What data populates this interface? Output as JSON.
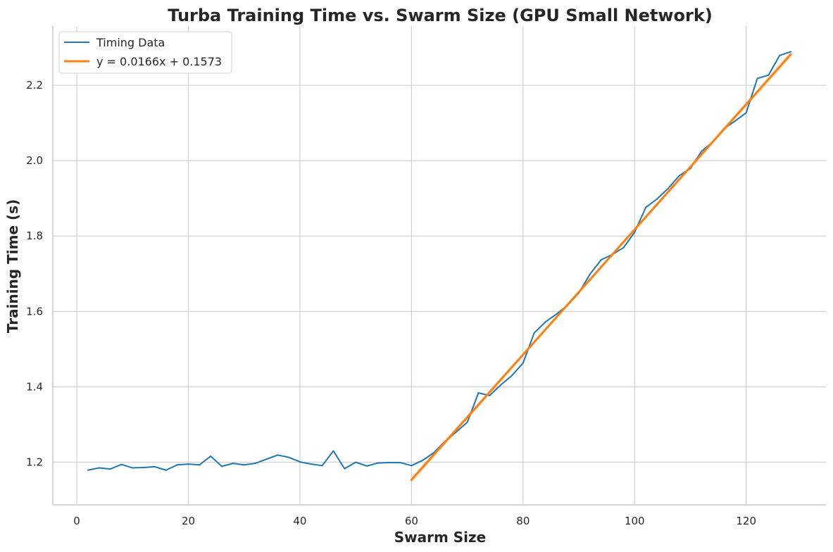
{
  "chart_data": {
    "type": "line",
    "title": "Turba Training Time vs. Swarm Size (GPU Small Network)",
    "xlabel": "Swarm Size",
    "ylabel": "Training Time (s)",
    "xlim": [
      -4.3,
      134.3
    ],
    "ylim": [
      1.087,
      2.357
    ],
    "xticks": [
      0,
      20,
      40,
      60,
      80,
      100,
      120
    ],
    "yticks": [
      1.2,
      1.4,
      1.6,
      1.8,
      2.0,
      2.2
    ],
    "xtick_labels": [
      "0",
      "20",
      "40",
      "60",
      "80",
      "100",
      "120"
    ],
    "ytick_labels": [
      "1.2",
      "1.4",
      "1.6",
      "1.8",
      "2.0",
      "2.2"
    ],
    "grid": true,
    "legend_position": "top-left",
    "series": [
      {
        "name": "Timing Data",
        "color": "#1f77b4",
        "x": [
          2,
          4,
          6,
          8,
          10,
          12,
          14,
          16,
          18,
          20,
          22,
          24,
          26,
          28,
          30,
          32,
          34,
          36,
          38,
          40,
          42,
          44,
          46,
          48,
          50,
          52,
          54,
          56,
          58,
          60,
          62,
          64,
          66,
          68,
          70,
          72,
          74,
          76,
          78,
          80,
          82,
          84,
          86,
          88,
          90,
          92,
          94,
          96,
          98,
          100,
          102,
          104,
          106,
          108,
          110,
          112,
          114,
          116,
          118,
          120,
          122,
          124,
          126,
          128
        ],
        "y": [
          1.179,
          1.185,
          1.182,
          1.194,
          1.185,
          1.186,
          1.188,
          1.179,
          1.193,
          1.195,
          1.193,
          1.216,
          1.189,
          1.197,
          1.193,
          1.197,
          1.208,
          1.219,
          1.213,
          1.201,
          1.195,
          1.191,
          1.23,
          1.183,
          1.2,
          1.19,
          1.198,
          1.199,
          1.199,
          1.191,
          1.205,
          1.225,
          1.255,
          1.28,
          1.306,
          1.384,
          1.377,
          1.405,
          1.43,
          1.463,
          1.543,
          1.572,
          1.593,
          1.617,
          1.649,
          1.699,
          1.737,
          1.751,
          1.769,
          1.81,
          1.876,
          1.898,
          1.926,
          1.96,
          1.979,
          2.025,
          2.049,
          2.085,
          2.105,
          2.127,
          2.218,
          2.227,
          2.279,
          2.289
        ]
      },
      {
        "name": "y = 0.0166x + 0.1573",
        "color": "#ff7f0e",
        "type": "fit",
        "slope": 0.0166,
        "intercept": 0.1573,
        "x_range": [
          60,
          128
        ]
      }
    ]
  }
}
